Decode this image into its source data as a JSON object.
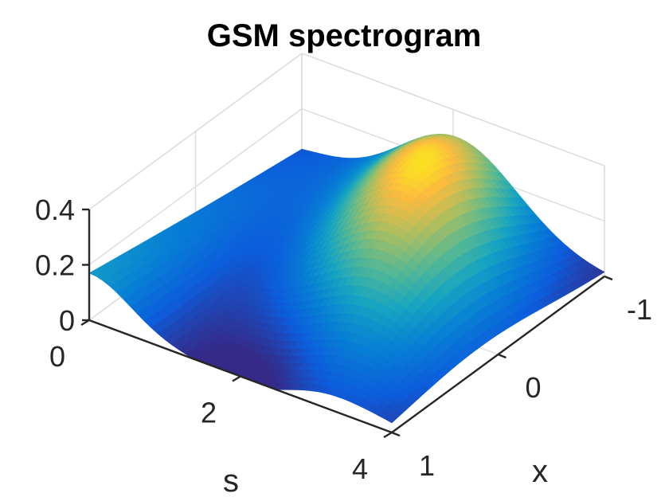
{
  "chart_data": {
    "type": "surface",
    "title": "GSM spectrogram",
    "xlabel": "s",
    "ylabel": "x",
    "zlabel": "",
    "xlim": [
      0,
      4
    ],
    "ylim": [
      -1,
      1
    ],
    "zlim": [
      0,
      0.4
    ],
    "x_ticks": [
      0,
      2,
      4
    ],
    "x_tick_labels": [
      "0",
      "2",
      "4"
    ],
    "y_ticks": [
      -1,
      0,
      1
    ],
    "y_tick_labels": [
      "-1",
      "0",
      "1"
    ],
    "z_ticks": [
      0,
      0.2,
      0.4
    ],
    "z_tick_labels": [
      "0",
      "0.2",
      "0.4"
    ],
    "grid": true,
    "colormap": "parula",
    "surface_samples": {
      "description_x": "s",
      "description_y": "x",
      "points": [
        {
          "s": 0.0,
          "x": 1.0,
          "z": 0.17
        },
        {
          "s": 0.0,
          "x": -1.0,
          "z": 0.03
        },
        {
          "s": 2.3,
          "x": 1.0,
          "z": 0.01
        },
        {
          "s": 2.6,
          "x": -0.55,
          "z": 0.42
        },
        {
          "s": 3.2,
          "x": 0.45,
          "z": 0.05
        },
        {
          "s": 4.0,
          "x": 1.0,
          "z": 0.0
        },
        {
          "s": 4.0,
          "x": -1.0,
          "z": 0.0
        }
      ]
    }
  }
}
